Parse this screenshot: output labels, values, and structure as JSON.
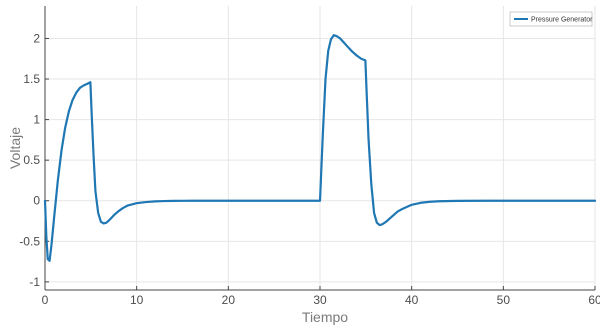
{
  "chart_data": {
    "type": "line",
    "title": "",
    "xlabel": "Tiempo",
    "ylabel": "Voltaje",
    "xlim": [
      0,
      60
    ],
    "ylim": [
      -1.1,
      2.4
    ],
    "x_ticks": [
      0,
      10,
      20,
      30,
      40,
      50,
      60
    ],
    "x_tick_labels": [
      "0",
      "10",
      "20",
      "30",
      "40",
      "50",
      "60"
    ],
    "y_ticks": [
      -1,
      -0.5,
      0,
      0.5,
      1,
      1.5,
      2
    ],
    "y_tick_labels": [
      "-1",
      "-0.5",
      "0",
      "0.5",
      "1",
      "1.5",
      "2"
    ],
    "grid": true,
    "legend_position": "top-right",
    "colors": {
      "series": "#1f77b4",
      "grid": "#e6e6e6",
      "axis": "#444444"
    },
    "series": [
      {
        "name": "Pressure Generator",
        "x": [
          0,
          0.15,
          0.3,
          0.5,
          0.7,
          1.0,
          1.4,
          1.8,
          2.2,
          2.6,
          3.0,
          3.4,
          3.8,
          4.2,
          4.6,
          4.95,
          5.1,
          5.3,
          5.5,
          5.8,
          6.1,
          6.4,
          6.7,
          7.0,
          7.5,
          8.0,
          8.5,
          9.0,
          10.0,
          11.0,
          12.0,
          13.0,
          14.0,
          15.0,
          16.0,
          18.0,
          20.0,
          25.0,
          29.9,
          30.0,
          30.3,
          30.6,
          30.9,
          31.2,
          31.5,
          31.8,
          32.2,
          32.6,
          33.0,
          33.5,
          34.0,
          34.5,
          34.95,
          35.1,
          35.3,
          35.6,
          35.9,
          36.2,
          36.5,
          36.8,
          37.2,
          37.6,
          38.0,
          38.5,
          39.0,
          40.0,
          41.0,
          42.0,
          43.0,
          45.0,
          48.0,
          50.0,
          55.0,
          60.0
        ],
        "y": [
          0,
          -0.45,
          -0.72,
          -0.74,
          -0.55,
          -0.2,
          0.25,
          0.62,
          0.9,
          1.1,
          1.24,
          1.33,
          1.39,
          1.42,
          1.44,
          1.46,
          1.05,
          0.55,
          0.12,
          -0.15,
          -0.26,
          -0.28,
          -0.27,
          -0.24,
          -0.18,
          -0.13,
          -0.09,
          -0.06,
          -0.03,
          -0.016,
          -0.008,
          -0.004,
          -0.002,
          -0.001,
          0,
          0,
          0,
          0,
          0,
          0,
          0.8,
          1.5,
          1.85,
          1.99,
          2.04,
          2.03,
          2.0,
          1.95,
          1.9,
          1.84,
          1.79,
          1.75,
          1.73,
          1.3,
          0.75,
          0.2,
          -0.15,
          -0.27,
          -0.3,
          -0.29,
          -0.26,
          -0.22,
          -0.18,
          -0.13,
          -0.1,
          -0.05,
          -0.025,
          -0.012,
          -0.006,
          -0.002,
          0,
          0,
          0,
          0
        ]
      }
    ]
  }
}
